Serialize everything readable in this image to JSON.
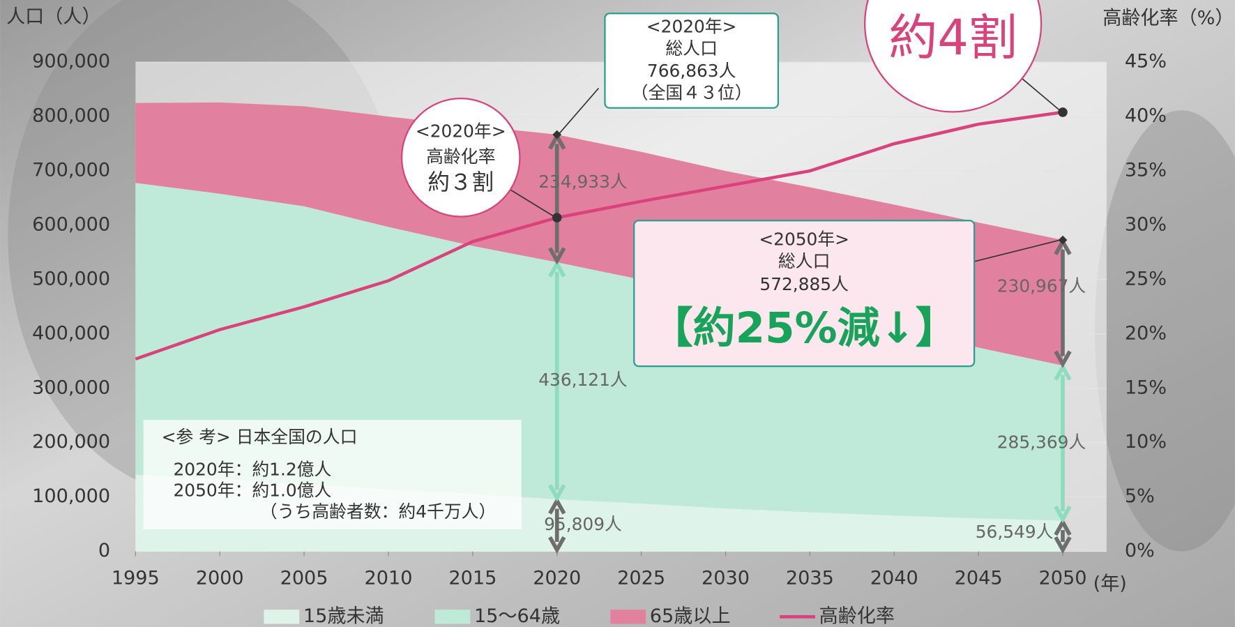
{
  "chart_data": {
    "type": "stacked-area-line",
    "y_label": "人口（人）",
    "y2_label": "高齢化率（%）",
    "x_unit": "(年)",
    "x": [
      1995,
      2000,
      2005,
      2010,
      2015,
      2020,
      2025,
      2030,
      2035,
      2040,
      2045,
      2050
    ],
    "xlim": [
      1995,
      2052.6
    ],
    "xticks": [
      1995,
      2000,
      2005,
      2010,
      2015,
      2020,
      2025,
      2030,
      2035,
      2040,
      2045,
      2050
    ],
    "ylim": [
      0,
      900000
    ],
    "yticks": [
      0,
      {
        "value": 100000,
        "label": "100,000"
      },
      {
        "value": 200000,
        "label": "200,000"
      },
      {
        "value": 300000,
        "label": "300,000"
      },
      {
        "value": 400000,
        "label": "400,000"
      },
      {
        "value": 500000,
        "label": "500,000"
      },
      {
        "value": 600000,
        "label": "600,000"
      },
      {
        "value": 700000,
        "label": "700,000"
      },
      {
        "value": 800000,
        "label": "800,000"
      },
      {
        "value": 900000,
        "label": "900,000"
      }
    ],
    "y2lim": [
      0,
      45
    ],
    "y2ticks": [
      {
        "value": 0,
        "label": "0%"
      },
      {
        "value": 5,
        "label": "5%"
      },
      {
        "value": 10,
        "label": "10%"
      },
      {
        "value": 15,
        "label": "15%"
      },
      {
        "value": 20,
        "label": "20%"
      },
      {
        "value": 25,
        "label": "25%"
      },
      {
        "value": 30,
        "label": "30%"
      },
      {
        "value": 35,
        "label": "35%"
      },
      {
        "value": 40,
        "label": "40%"
      },
      {
        "value": 45,
        "label": "45%"
      }
    ],
    "series": [
      {
        "name": "15歳未満",
        "color": "#def3ea",
        "arrow_color": "#6e6e6e",
        "values": [
          141000,
          133000,
          123000,
          114000,
          106000,
          95809,
          88000,
          79000,
          72000,
          66000,
          61000,
          56549
        ],
        "value_labels": [
          null,
          null,
          null,
          null,
          null,
          "95,809人",
          null,
          null,
          null,
          null,
          null,
          "56,549人"
        ]
      },
      {
        "name": "15〜64歳",
        "color": "#bfe9d8",
        "arrow_color": "#8ddcbd",
        "values": [
          537000,
          525000,
          512000,
          483000,
          456000,
          436121,
          412000,
          391000,
          368000,
          344000,
          314000,
          285369
        ],
        "value_labels": [
          null,
          null,
          null,
          null,
          null,
          "436,121人",
          null,
          null,
          null,
          null,
          null,
          "285,369人"
        ]
      },
      {
        "name": "65歳以上",
        "color": "#e2819f",
        "arrow_color": "#6e6e6e",
        "values": [
          147000,
          168000,
          184000,
          203000,
          221000,
          234933,
          235000,
          230000,
          230000,
          228000,
          230000,
          230967
        ],
        "value_labels": [
          null,
          null,
          null,
          null,
          null,
          "234,933人",
          null,
          null,
          null,
          null,
          null,
          "230,967人"
        ]
      },
      {
        "name": "高齢化率",
        "color": "#d9427a",
        "axis": "y2",
        "values": [
          17.7,
          20.4,
          22.5,
          24.9,
          28.5,
          30.7,
          32.2,
          33.6,
          35.0,
          37.5,
          39.3,
          40.4
        ]
      }
    ],
    "annotations": {
      "box2020": [
        "<2020年>",
        "総人口",
        "766,863人",
        "（全国４３位）"
      ],
      "circle2020": [
        "<2020年>",
        "高齢化率",
        "約３割"
      ],
      "circle2050": "約4割",
      "box2050": [
        "<2050年>",
        "総人口",
        "572,885人",
        "【約25%減↓】"
      ],
      "reference": [
        "<参 考> 日本全国の人口",
        "2020年：約1.2億人",
        "2050年：約1.0億人",
        "（うち高齢者数：約4千万人）"
      ]
    }
  }
}
